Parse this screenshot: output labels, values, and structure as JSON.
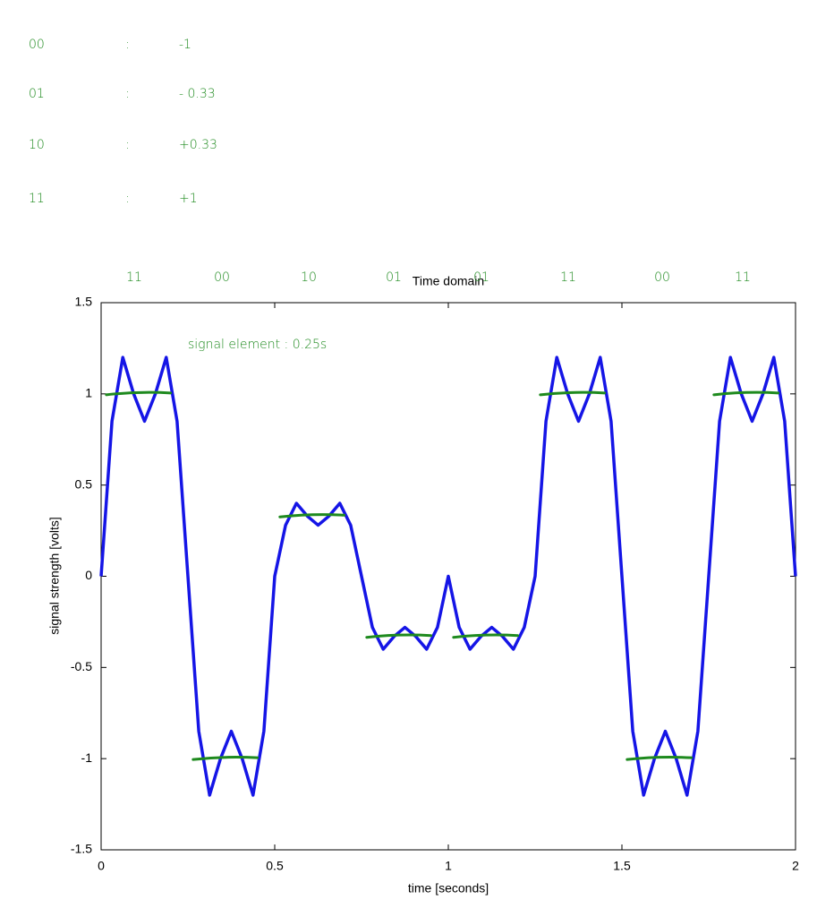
{
  "handwriting": {
    "codes": [
      {
        "bits": "00",
        "sep": ":",
        "value": "-1"
      },
      {
        "bits": "01",
        "sep": ":",
        "value": "- 0.33"
      },
      {
        "bits": "10",
        "sep": ":",
        "value": "+0.33"
      },
      {
        "bits": "11",
        "sep": ":",
        "value": "+1"
      }
    ],
    "bit_labels": [
      "11",
      "00",
      "10",
      "01",
      "01",
      "11",
      "00",
      "11"
    ],
    "note": "signal element : 0.25s"
  },
  "chart_data": {
    "type": "line",
    "title": "Time domain",
    "x_label": "time [seconds]",
    "y_label": "signal strength [volts]",
    "xlim": [
      0,
      2
    ],
    "ylim": [
      -1.5,
      1.5
    ],
    "xticks": [
      0,
      0.5,
      1,
      1.5,
      2
    ],
    "yticks": [
      -1.5,
      -1,
      -0.5,
      0,
      0.5,
      1,
      1.5
    ],
    "grid": false,
    "series": [
      {
        "color": "#1515e6",
        "x": [
          0,
          0.03125,
          0.0625,
          0.09375,
          0.125,
          0.15625,
          0.1875,
          0.21875,
          0.25,
          0.28125,
          0.3125,
          0.34375,
          0.375,
          0.40625,
          0.4375,
          0.46875,
          0.5,
          0.53125,
          0.5625,
          0.59375,
          0.625,
          0.65625,
          0.6875,
          0.71875,
          0.75,
          0.78125,
          0.8125,
          0.84375,
          0.875,
          0.90625,
          0.9375,
          0.96875,
          1,
          1.03125,
          1.0625,
          1.09375,
          1.125,
          1.15625,
          1.1875,
          1.21875,
          1.25,
          1.28125,
          1.3125,
          1.34375,
          1.375,
          1.40625,
          1.4375,
          1.46875,
          1.5,
          1.53125,
          1.5625,
          1.59375,
          1.625,
          1.65625,
          1.6875,
          1.71875,
          1.75,
          1.78125,
          1.8125,
          1.84375,
          1.875,
          1.90625,
          1.9375,
          1.96875,
          2
        ],
        "values": [
          0,
          0.85,
          1.2,
          1.0,
          0.85,
          1.0,
          1.2,
          0.85,
          0,
          -0.85,
          -1.2,
          -1.0,
          -0.85,
          -1.0,
          -1.2,
          -0.85,
          0,
          0.28,
          0.4,
          0.33,
          0.28,
          0.33,
          0.4,
          0.28,
          0,
          -0.28,
          -0.4,
          -0.33,
          -0.28,
          -0.33,
          -0.4,
          -0.28,
          0,
          -0.28,
          -0.4,
          -0.33,
          -0.28,
          -0.33,
          -0.4,
          -0.28,
          0,
          0.85,
          1.2,
          1.0,
          0.85,
          1.0,
          1.2,
          0.85,
          0,
          -0.85,
          -1.2,
          -1.0,
          -0.85,
          -1.0,
          -1.2,
          -0.85,
          0,
          0.85,
          1.2,
          1.0,
          0.85,
          1.0,
          1.2,
          0.85,
          0
        ]
      }
    ],
    "levels": [
      1,
      -1,
      0.33,
      -0.33,
      -0.33,
      1,
      -1,
      1
    ],
    "level_color": "#1e8a1e"
  }
}
